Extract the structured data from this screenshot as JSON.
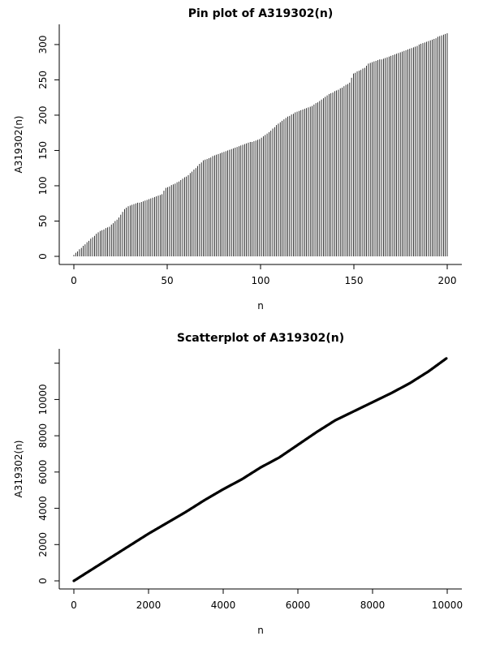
{
  "chart_data": [
    {
      "type": "pin",
      "title": "Pin plot of A319302(n)",
      "xlabel": "n",
      "ylabel": "A319302(n)",
      "xlim": [
        1,
        200
      ],
      "ylim": [
        0,
        316
      ],
      "xticks": [
        0,
        50,
        100,
        150,
        200
      ],
      "yticks": [
        0,
        50,
        100,
        150,
        200,
        250,
        300
      ],
      "grid": false,
      "series_shape_anchors": {
        "x": [
          1,
          5,
          10,
          15,
          20,
          25,
          28,
          30,
          40,
          48,
          50,
          55,
          58,
          62,
          66,
          70,
          80,
          90,
          100,
          106,
          110,
          115,
          120,
          128,
          133,
          137,
          142,
          148,
          150,
          156,
          158,
          170,
          180,
          190,
          200
        ],
        "y": [
          2,
          12,
          25,
          36,
          42,
          55,
          67,
          71,
          80,
          88,
          97,
          103,
          108,
          115,
          125,
          136,
          147,
          157,
          166,
          178,
          188,
          198,
          205,
          213,
          222,
          230,
          236,
          246,
          259,
          267,
          273,
          284,
          294,
          305,
          316
        ]
      }
    },
    {
      "type": "scatter",
      "title": "Scatterplot of A319302(n)",
      "xlabel": "n",
      "ylabel": "A319302(n)",
      "xlim": [
        1,
        10000
      ],
      "ylim": [
        0,
        12300
      ],
      "xticks": [
        0,
        2000,
        4000,
        6000,
        8000,
        10000
      ],
      "yticks": [
        0,
        2000,
        4000,
        6000,
        8000,
        10000
      ],
      "grid": false,
      "series_shape_anchors": {
        "x": [
          1,
          500,
          1000,
          1500,
          2000,
          2500,
          3000,
          3500,
          4000,
          4500,
          5000,
          5500,
          6000,
          6500,
          7000,
          7500,
          8000,
          8500,
          9000,
          9500,
          10000
        ],
        "y": [
          0,
          650,
          1300,
          1950,
          2600,
          3200,
          3800,
          4450,
          5050,
          5600,
          6250,
          6800,
          7500,
          8200,
          8850,
          9350,
          9850,
          10350,
          10900,
          11550,
          12300
        ]
      }
    }
  ]
}
